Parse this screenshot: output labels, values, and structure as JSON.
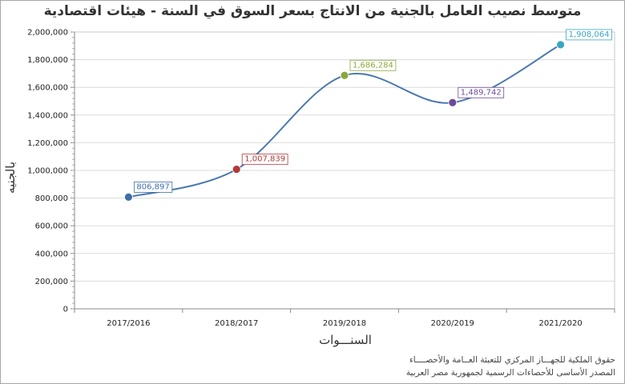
{
  "chart_data": {
    "type": "line",
    "title": "متوسط نصيب العامل بالجنية من الانتاج بسعر السوق في السنة - هيئات اقتصادية",
    "xlabel": "السنـــوات",
    "ylabel": "بالجنيه",
    "categories": [
      "2017/2016",
      "2018/2017",
      "2019/2018",
      "2020/2019",
      "2021/2020"
    ],
    "series": [
      {
        "values": [
          806897,
          1007839,
          1686284,
          1489742,
          1908064
        ],
        "value_labels": [
          "806,897",
          "1,007,839",
          "1,686,284",
          "1,489,742",
          "1,908,064"
        ],
        "point_colors": [
          "#3f6fa8",
          "#b03a3a",
          "#8aa83a",
          "#6e4a96",
          "#3aa6c0"
        ],
        "line_color": "#4a78b0"
      }
    ],
    "ylim": [
      0,
      2000000
    ],
    "yticks": [
      0,
      200000,
      400000,
      600000,
      800000,
      1000000,
      1200000,
      1400000,
      1600000,
      1800000,
      2000000
    ],
    "ytick_labels": [
      "0",
      "200,000",
      "400,000",
      "600,000",
      "800,000",
      "1,000,000",
      "1,200,000",
      "1,400,000",
      "1,600,000",
      "1,800,000",
      "2,000,000"
    ],
    "grid": true,
    "legend": "none"
  },
  "footer": {
    "line1": "حقوق الملكية للجهـــاز المركزي للتعبئة العــامة والأحصــــاء",
    "line2": "المصدر الأساسى للأحصاءات الرسمية لجمهورية مصر العربية"
  }
}
